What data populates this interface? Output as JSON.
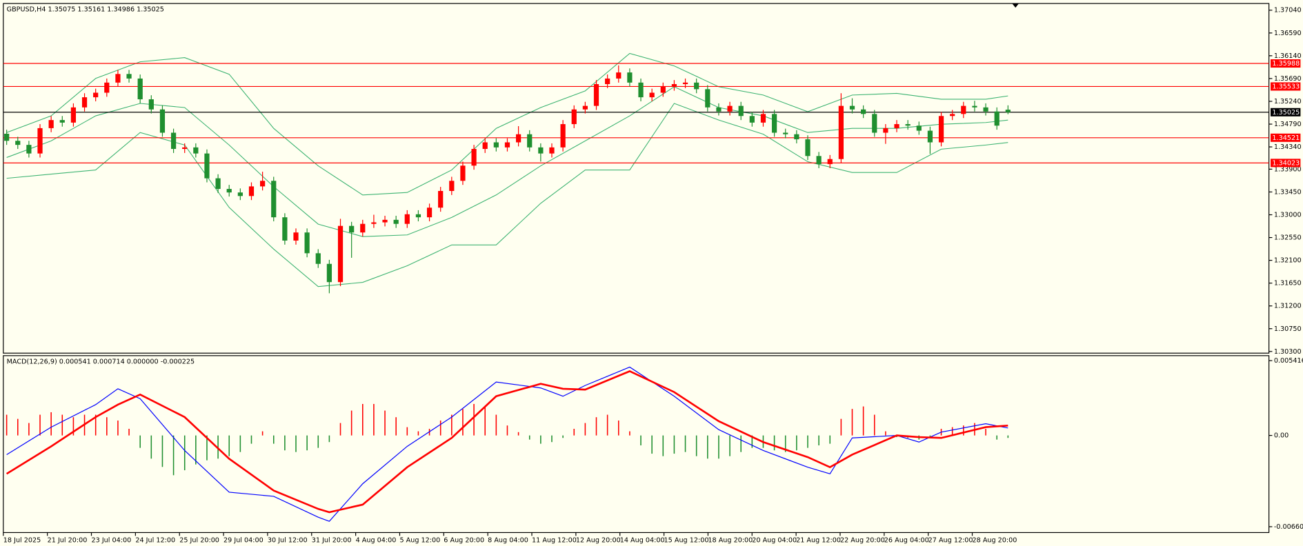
{
  "chart_data": [
    {
      "type": "candlestick",
      "title": "GBPUSD,H4  1.35075 1.35161 1.34986 1.35025",
      "bull_color": "#ff0000",
      "bear_color": "#1f8f2f",
      "candles": [
        [
          1.346,
          1.3468,
          1.3438,
          1.3446
        ],
        [
          1.3446,
          1.3454,
          1.343,
          1.3438
        ],
        [
          1.3438,
          1.3446,
          1.3413,
          1.3421
        ],
        [
          1.3421,
          1.3479,
          1.3413,
          1.3471
        ],
        [
          1.3471,
          1.3495,
          1.3463,
          1.3487
        ],
        [
          1.3487,
          1.3495,
          1.3474,
          1.3482
        ],
        [
          1.3482,
          1.352,
          1.3474,
          1.3512
        ],
        [
          1.3512,
          1.354,
          1.3504,
          1.3532
        ],
        [
          1.3532,
          1.3549,
          1.3524,
          1.3541
        ],
        [
          1.3541,
          1.3569,
          1.3533,
          1.3561
        ],
        [
          1.3561,
          1.3586,
          1.3553,
          1.3578
        ],
        [
          1.3578,
          1.3586,
          1.3561,
          1.3569
        ],
        [
          1.3569,
          1.3577,
          1.352,
          1.3528
        ],
        [
          1.3528,
          1.3536,
          1.35,
          1.3508
        ],
        [
          1.3508,
          1.3516,
          1.3454,
          1.3462
        ],
        [
          1.3462,
          1.347,
          1.3422,
          1.343
        ],
        [
          1.343,
          1.3441,
          1.3422,
          1.3433
        ],
        [
          1.3433,
          1.3441,
          1.3413,
          1.3421
        ],
        [
          1.3421,
          1.3429,
          1.3364,
          1.3372
        ],
        [
          1.3372,
          1.338,
          1.3343,
          1.3351
        ],
        [
          1.3351,
          1.3359,
          1.3336,
          1.3344
        ],
        [
          1.3344,
          1.3352,
          1.3329,
          1.3337
        ],
        [
          1.3337,
          1.3364,
          1.3329,
          1.3356
        ],
        [
          1.3356,
          1.3385,
          1.3348,
          1.3367
        ],
        [
          1.3367,
          1.3375,
          1.3287,
          1.3295
        ],
        [
          1.3295,
          1.3303,
          1.3241,
          1.3249
        ],
        [
          1.3249,
          1.3273,
          1.3241,
          1.3265
        ],
        [
          1.3265,
          1.3273,
          1.3216,
          1.3224
        ],
        [
          1.3224,
          1.3232,
          1.3195,
          1.3203
        ],
        [
          1.3203,
          1.3211,
          1.3145,
          1.3167
        ],
        [
          1.3167,
          1.3292,
          1.3159,
          1.3278
        ],
        [
          1.3278,
          1.3286,
          1.3215,
          1.3265
        ],
        [
          1.3265,
          1.329,
          1.3257,
          1.3282
        ],
        [
          1.3282,
          1.33,
          1.3274,
          1.3285
        ],
        [
          1.3285,
          1.3298,
          1.3277,
          1.329
        ],
        [
          1.329,
          1.3298,
          1.3274,
          1.3282
        ],
        [
          1.3282,
          1.3309,
          1.3274,
          1.3301
        ],
        [
          1.3301,
          1.3309,
          1.3287,
          1.3295
        ],
        [
          1.3295,
          1.3322,
          1.3287,
          1.3314
        ],
        [
          1.3314,
          1.3355,
          1.3306,
          1.3347
        ],
        [
          1.3347,
          1.3375,
          1.3339,
          1.3367
        ],
        [
          1.3367,
          1.3405,
          1.3359,
          1.3397
        ],
        [
          1.3397,
          1.3438,
          1.3389,
          1.343
        ],
        [
          1.343,
          1.3451,
          1.3422,
          1.3443
        ],
        [
          1.3443,
          1.3451,
          1.3425,
          1.3433
        ],
        [
          1.3433,
          1.3451,
          1.3425,
          1.3443
        ],
        [
          1.3443,
          1.3475,
          1.3435,
          1.3459
        ],
        [
          1.3459,
          1.3467,
          1.3425,
          1.3433
        ],
        [
          1.3433,
          1.3441,
          1.3405,
          1.3421
        ],
        [
          1.3421,
          1.3441,
          1.3413,
          1.3433
        ],
        [
          1.3433,
          1.3487,
          1.3425,
          1.3479
        ],
        [
          1.3479,
          1.3516,
          1.3471,
          1.3508
        ],
        [
          1.3508,
          1.3523,
          1.35,
          1.3515
        ],
        [
          1.3515,
          1.3566,
          1.3507,
          1.3558
        ],
        [
          1.3558,
          1.3577,
          1.355,
          1.3569
        ],
        [
          1.3569,
          1.3595,
          1.3561,
          1.3581
        ],
        [
          1.3581,
          1.3589,
          1.3553,
          1.3561
        ],
        [
          1.3561,
          1.3569,
          1.3524,
          1.3532
        ],
        [
          1.3532,
          1.3549,
          1.3524,
          1.3541
        ],
        [
          1.3541,
          1.3561,
          1.3533,
          1.3553
        ],
        [
          1.3553,
          1.3566,
          1.3545,
          1.3558
        ],
        [
          1.3558,
          1.3569,
          1.355,
          1.3561
        ],
        [
          1.3561,
          1.3569,
          1.354,
          1.3548
        ],
        [
          1.3548,
          1.3556,
          1.3504,
          1.3512
        ],
        [
          1.3512,
          1.352,
          1.3496,
          1.3504
        ],
        [
          1.3504,
          1.3523,
          1.3496,
          1.3515
        ],
        [
          1.3515,
          1.3523,
          1.3487,
          1.3495
        ],
        [
          1.3495,
          1.3503,
          1.3474,
          1.3482
        ],
        [
          1.3482,
          1.3507,
          1.3474,
          1.3499
        ],
        [
          1.3499,
          1.3507,
          1.3454,
          1.3462
        ],
        [
          1.3462,
          1.347,
          1.3451,
          1.3459
        ],
        [
          1.3459,
          1.3467,
          1.3441,
          1.3449
        ],
        [
          1.3449,
          1.3457,
          1.3408,
          1.3416
        ],
        [
          1.3416,
          1.3424,
          1.3392,
          1.34
        ],
        [
          1.34,
          1.3418,
          1.3392,
          1.341
        ],
        [
          1.341,
          1.354,
          1.3402,
          1.3515
        ],
        [
          1.3515,
          1.353,
          1.35,
          1.3508
        ],
        [
          1.3508,
          1.3516,
          1.3491,
          1.3499
        ],
        [
          1.3499,
          1.3507,
          1.3454,
          1.3462
        ],
        [
          1.3462,
          1.3479,
          1.344,
          1.3471
        ],
        [
          1.3471,
          1.3487,
          1.3463,
          1.3479
        ],
        [
          1.3479,
          1.3487,
          1.3468,
          1.3476
        ],
        [
          1.3476,
          1.3484,
          1.3458,
          1.3466
        ],
        [
          1.3466,
          1.3474,
          1.342,
          1.3443
        ],
        [
          1.3443,
          1.3503,
          1.3435,
          1.3495
        ],
        [
          1.3495,
          1.3507,
          1.3487,
          1.3499
        ],
        [
          1.3499,
          1.3523,
          1.3491,
          1.3515
        ],
        [
          1.3515,
          1.3525,
          1.3504,
          1.3512
        ],
        [
          1.3512,
          1.352,
          1.3496,
          1.3504
        ],
        [
          1.3504,
          1.3512,
          1.3468,
          1.3476
        ],
        [
          1.35075,
          1.35161,
          1.34986,
          1.35025
        ]
      ],
      "bands": {
        "color": "#3cb371",
        "x": [
          0,
          4,
          8,
          12,
          16,
          20,
          24,
          28,
          32,
          36,
          40,
          44,
          48,
          52,
          56,
          60,
          64,
          68,
          72,
          76,
          80,
          84,
          88,
          90
        ],
        "upper": [
          1.34624,
          1.34953,
          1.35692,
          1.36021,
          1.36103,
          1.35775,
          1.34706,
          1.33966,
          1.33391,
          1.3344,
          1.33884,
          1.34706,
          1.35117,
          1.35446,
          1.36186,
          1.35939,
          1.35528,
          1.35364,
          1.35035,
          1.35364,
          1.35397,
          1.35281,
          1.35281,
          1.35347
        ],
        "middle": [
          1.34131,
          1.34459,
          1.34953,
          1.35199,
          1.35117,
          1.34377,
          1.33555,
          1.32815,
          1.32569,
          1.32602,
          1.32947,
          1.33391,
          1.33966,
          1.34459,
          1.34953,
          1.35528,
          1.35117,
          1.34953,
          1.34624,
          1.34706,
          1.34706,
          1.34788,
          1.34821,
          1.3487
        ],
        "lower": [
          1.3372,
          1.33802,
          1.33884,
          1.34624,
          1.34377,
          1.33144,
          1.32322,
          1.31582,
          1.31665,
          1.31993,
          1.32404,
          1.32404,
          1.33226,
          1.33884,
          1.33884,
          1.35199,
          1.3487,
          1.34591,
          1.34048,
          1.33835,
          1.33835,
          1.34295,
          1.34377,
          1.34427
        ]
      },
      "levels": [
        1.35988,
        1.35533,
        1.34521,
        1.34023
      ],
      "level_color": "#ff0000",
      "price_line": 1.35025,
      "price_line_color": "#000000",
      "ylim": [
        1.30267,
        1.37172
      ],
      "yticks": [
        {
          "value": 1.3704,
          "label": "1.37040"
        },
        {
          "value": 1.3659,
          "label": "1.36590"
        },
        {
          "value": 1.3614,
          "label": "1.36140"
        },
        {
          "value": 1.3569,
          "label": "1.35690"
        },
        {
          "value": 1.3524,
          "label": "1.35240"
        },
        {
          "value": 1.3479,
          "label": "1.34790"
        },
        {
          "value": 1.3434,
          "label": "1.34340"
        },
        {
          "value": 1.339,
          "label": "1.33900"
        },
        {
          "value": 1.3345,
          "label": "1.33450"
        },
        {
          "value": 1.33,
          "label": "1.33000"
        },
        {
          "value": 1.3255,
          "label": "1.32550"
        },
        {
          "value": 1.321,
          "label": "1.32100"
        },
        {
          "value": 1.3165,
          "label": "1.31650"
        },
        {
          "value": 1.312,
          "label": "1.31200"
        },
        {
          "value": 1.3075,
          "label": "1.30750"
        },
        {
          "value": 1.303,
          "label": "1.30300"
        }
      ],
      "time_labels": [
        "18 Jul 2025",
        "21 Jul 20:00",
        "23 Jul 04:00",
        "24 Jul 12:00",
        "25 Jul 20:00",
        "29 Jul 04:00",
        "30 Jul 12:00",
        "31 Jul 20:00",
        "4 Aug 04:00",
        "5 Aug 12:00",
        "6 Aug 20:00",
        "8 Aug 04:00",
        "11 Aug 12:00",
        "12 Aug 20:00",
        "14 Aug 04:00",
        "15 Aug 12:00",
        "18 Aug 20:00",
        "20 Aug 04:00",
        "21 Aug 12:00",
        "22 Aug 20:00",
        "26 Aug 04:00",
        "27 Aug 12:00",
        "28 Aug 20:00"
      ]
    },
    {
      "type": "macd",
      "title": "MACD(12,26,9) 0.000541 0.000714 0.000000 -0.000225",
      "histogram": [
        0.0015,
        0.0012,
        0.0009,
        0.0015,
        0.00168,
        0.0015,
        0.00132,
        0.0015,
        0.0015,
        0.00132,
        0.00108,
        0.00048,
        -0.0009,
        -0.00168,
        -0.00228,
        -0.00288,
        -0.00252,
        -0.0021,
        -0.0018,
        -0.00168,
        -0.0015,
        -0.0012,
        -0.0006,
        0.0003,
        -0.0006,
        -0.00108,
        -0.0012,
        -0.00108,
        -0.0009,
        -0.00048,
        0.0009,
        0.0018,
        0.00228,
        0.00228,
        0.0018,
        0.00132,
        0.0006,
        0.0003,
        0.00048,
        0.00108,
        0.0015,
        0.00192,
        0.00228,
        0.0021,
        0.0015,
        0.00072,
        0.00024,
        -0.0003,
        -0.0006,
        -0.00048,
        -0.00018,
        0.00048,
        0.0009,
        0.00132,
        0.0015,
        0.00108,
        0.0003,
        -0.00072,
        -0.00132,
        -0.0015,
        -0.00132,
        -0.0012,
        -0.0015,
        -0.00168,
        -0.00168,
        -0.0015,
        -0.0012,
        -0.0009,
        -0.0009,
        -0.00108,
        -0.0012,
        -0.00108,
        -0.0009,
        -0.00072,
        -0.0006,
        0.0012,
        0.00192,
        0.0021,
        0.0015,
        0.0003,
        -0.00012,
        -0.00018,
        -0.0003,
        -0.00012,
        0.00048,
        0.0006,
        0.00072,
        0.0009,
        0.00048,
        -0.0003,
        -0.00018
      ],
      "hist_up_color": "#ff0000",
      "hist_down_color": "#1f8f2f",
      "x": [
        0,
        4,
        8,
        10,
        12,
        16,
        20,
        24,
        28,
        29,
        32,
        36,
        40,
        44,
        48,
        50,
        52,
        56,
        60,
        64,
        68,
        72,
        74,
        76,
        80,
        82,
        84,
        88,
        90
      ],
      "series": [
        {
          "color": "#0000ff",
          "values": [
            -0.00139,
            0.0006,
            0.00223,
            0.00338,
            0.00266,
            -0.00109,
            -0.00411,
            -0.00441,
            -0.00592,
            -0.00622,
            -0.0035,
            -0.00079,
            0.00133,
            0.00387,
            0.00344,
            0.00284,
            0.00362,
            0.00495,
            0.00284,
            0.00042,
            -0.00109,
            -0.0023,
            -0.00278,
            -0.00018,
            0,
            -0.00048,
            0.00024,
            0.00085,
            0.000541
          ]
        },
        {
          "color": "#ff0000",
          "values": [
            -0.00278,
            -0.00079,
            0.00133,
            0.00223,
            0.00296,
            0.00133,
            -0.00169,
            -0.00399,
            -0.00532,
            -0.00556,
            -0.00501,
            -0.0023,
            -0.00018,
            0.00284,
            0.00374,
            0.00338,
            0.00332,
            0.00465,
            0.00314,
            0.00103,
            -0.00048,
            -0.00157,
            -0.0023,
            -0.00139,
            0,
            -0.00012,
            -0.00018,
            0.0006,
            0.000714
          ]
        }
      ],
      "ylim": [
        -0.007032,
        0.005779
      ],
      "yticks": [
        0.005416,
        {
          "value": 0,
          "label": "0.00"
        },
        -0.006609
      ]
    }
  ]
}
